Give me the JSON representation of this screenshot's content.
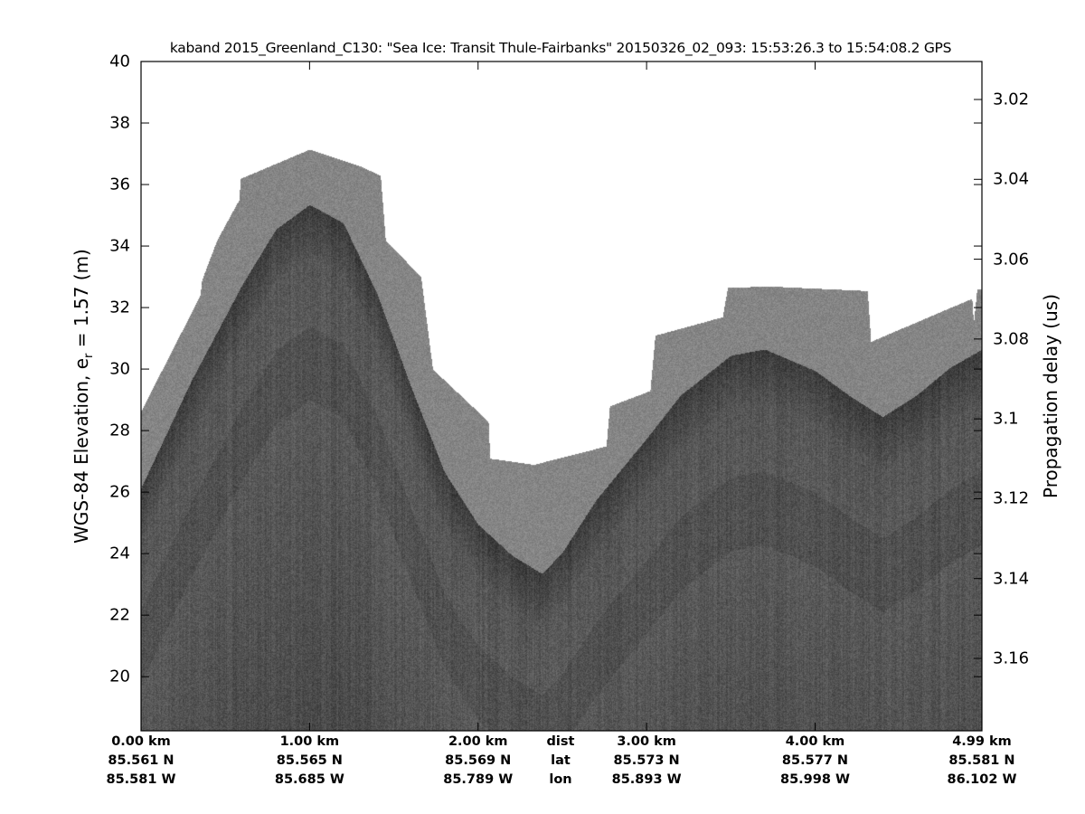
{
  "chart_data": {
    "type": "heatmap",
    "title": "kaband 2015_Greenland_C130: \"Sea Ice: Transit Thule-Fairbanks\"  20150326_02_093: 15:53:26.3 to 15:54:08.2 GPS",
    "ylabel_prefix": "WGS-84 Elevation, e",
    "ylabel_sub": "r",
    "ylabel_suffix": " = 1.57 (m)",
    "ylabel_right": "Propagation delay (us)",
    "ylim": [
      18.24,
      40
    ],
    "xlim_km": [
      0,
      4.99
    ],
    "yticks_left": [
      "20",
      "22",
      "24",
      "26",
      "28",
      "30",
      "32",
      "34",
      "36",
      "38",
      "40"
    ],
    "yticks_right": [
      "3.02",
      "3.04",
      "3.06",
      "3.08",
      "3.1",
      "3.12",
      "3.14",
      "3.16"
    ],
    "xticks": [
      {
        "km": 0,
        "dist": "0.00 km",
        "lat": "85.561 N",
        "lon": "85.581 W"
      },
      {
        "km": 1,
        "dist": "1.00 km",
        "lat": "85.565 N",
        "lon": "85.685 W"
      },
      {
        "km": 2,
        "dist": "2.00 km",
        "lat": "85.569 N",
        "lon": "85.789 W"
      },
      {
        "km": 3,
        "dist": "3.00 km",
        "lat": "85.573 N",
        "lon": "85.893 W"
      },
      {
        "km": 4,
        "dist": "4.00 km",
        "lat": "85.577 N",
        "lon": "85.998 W"
      },
      {
        "km": 4.99,
        "dist": "4.99 km",
        "lat": "85.581 N",
        "lon": "86.102 W"
      }
    ],
    "row_labels": {
      "dist": "dist",
      "lat": "lat",
      "lon": "lon"
    },
    "colormap": "gray",
    "surface_elevation_m": [
      [
        0,
        26.0
      ],
      [
        0.3,
        29.5
      ],
      [
        0.6,
        32.6
      ],
      [
        0.8,
        34.4
      ],
      [
        1.0,
        35.2
      ],
      [
        1.2,
        34.6
      ],
      [
        1.4,
        32.3
      ],
      [
        1.6,
        29.3
      ],
      [
        1.8,
        26.5
      ],
      [
        2.0,
        24.8
      ],
      [
        2.2,
        23.8
      ],
      [
        2.38,
        23.2
      ],
      [
        2.5,
        23.9
      ],
      [
        2.7,
        25.6
      ],
      [
        3.0,
        27.6
      ],
      [
        3.2,
        29.0
      ],
      [
        3.5,
        30.3
      ],
      [
        3.7,
        30.5
      ],
      [
        4.0,
        29.8
      ],
      [
        4.2,
        29.0
      ],
      [
        4.4,
        28.3
      ],
      [
        4.6,
        29.0
      ],
      [
        4.8,
        29.9
      ],
      [
        4.99,
        30.5
      ]
    ],
    "data_top_elevation_m": [
      [
        0,
        28.65
      ],
      [
        0.35,
        32.4
      ],
      [
        0.36,
        32.9
      ],
      [
        0.45,
        34.2
      ],
      [
        0.58,
        35.5
      ],
      [
        0.59,
        36.2
      ],
      [
        1.0,
        37.15
      ],
      [
        1.3,
        36.6
      ],
      [
        1.42,
        36.3
      ],
      [
        1.45,
        34.2
      ],
      [
        1.66,
        33.0
      ],
      [
        1.73,
        30.0
      ],
      [
        2.06,
        28.3
      ],
      [
        2.07,
        27.1
      ],
      [
        2.33,
        26.9
      ],
      [
        2.76,
        27.5
      ],
      [
        2.78,
        28.8
      ],
      [
        3.02,
        29.3
      ],
      [
        3.05,
        31.1
      ],
      [
        3.45,
        31.7
      ],
      [
        3.48,
        32.65
      ],
      [
        3.72,
        32.7
      ],
      [
        4.31,
        32.55
      ],
      [
        4.33,
        30.9
      ],
      [
        4.93,
        32.3
      ],
      [
        4.94,
        31.5
      ],
      [
        4.96,
        32.6
      ],
      [
        4.99,
        32.6
      ]
    ]
  }
}
